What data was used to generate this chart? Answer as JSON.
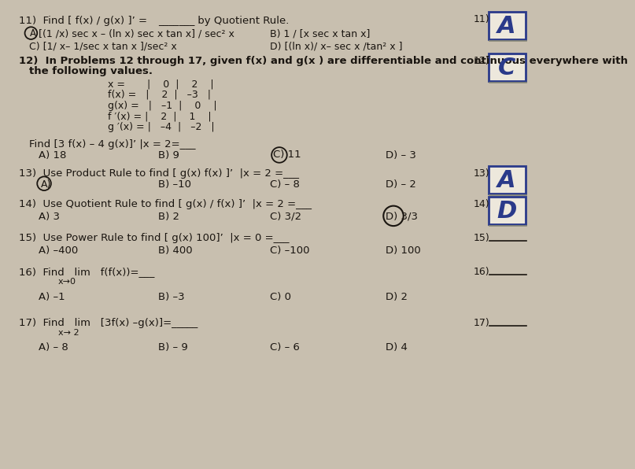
{
  "bg_color": "#c8bfaf",
  "paper_color": "#ede8dc",
  "text_color": "#1a1510",
  "blue_color": "#2a3a8a",
  "content": {
    "q11_line1": "11)  Find [ f(x) / g(x) ]’ = _______ by Quotient Rule.",
    "q11_A": "A [(1 /x) sec x – (ln x) sec x tan x] / sec² x",
    "q11_B": "B) 1 / [x sec x tan x]",
    "q11_C": "C) [1/ x– 1/sec x tan x ]/sec² x",
    "q11_D": "D) [(ln x)/ x– sec x /tan² x ]",
    "q12_intro": "12)  In Problems 12 through 17, given f(x) and g(x ) are differentiable and continuous everywhere with",
    "q12_intro2": "      the following values.",
    "table_x": "x =        |    0   |    2    |",
    "table_fx": "f(x) =     |    2   |   –3   |",
    "table_gx": "g(x) =    |   –1   |    0    |",
    "table_fpx": "f ′(x) =   |    2   |    1    |",
    "table_gpx": "g ′(x) =  |   –4   |   –2   |",
    "q12_find": "Find [3 f(x) – 4 g(x)]’ |x = 2= ___",
    "q12_A": "A) 18",
    "q12_B": "B) 9",
    "q12_C": "C) 11",
    "q12_D": "D) – 3",
    "q13_intro": "13)  Use Product Rule to find [ g(x) f(x) ]’  |x = 2 =___",
    "q13_A": "A)",
    "q13_B": "B) –10",
    "q13_C": "C) – 8",
    "q13_D": "D) – 2",
    "q14_intro": "14)  Use Quotient Rule to find [ g(x) / f(x) ]’  |x = 2 =___",
    "q14_A": "A) 3",
    "q14_B": "B) 2",
    "q14_C": "C) 3/2",
    "q14_D": "D) 3/3",
    "q15_intro": "15)  Use Power Rule to find [ g(x) 100]’  |x = 0 =___",
    "q15_A": "A) –400",
    "q15_B": "B) 400",
    "q15_C": "C) –100",
    "q15_D": "D) 100",
    "q16_intro": "16)  Find   lim   f(f(x))= ___",
    "q16_sub": "x→0",
    "q16_A": "A) –1",
    "q16_B": "B) –3",
    "q16_C": "C) 0",
    "q16_D": "D) 2",
    "q17_intro": "17)  Find   lim   [3f(x) –g(x)]=_____",
    "q17_sub": "x→ 2",
    "q17_A": "A) – 8",
    "q17_B": "B) – 9",
    "q17_C": "C) – 6",
    "q17_D": "D) 4"
  },
  "ans11_label": "11)",
  "ans11_letter": "A",
  "ans12_label": "12)",
  "ans12_letter": "C",
  "ans13_label": "13)",
  "ans13_letter": "A",
  "ans14_label": "14)",
  "ans14_letter": "D",
  "ans15_label": "15)",
  "ans16_label": "16)",
  "ans17_label": "17)"
}
